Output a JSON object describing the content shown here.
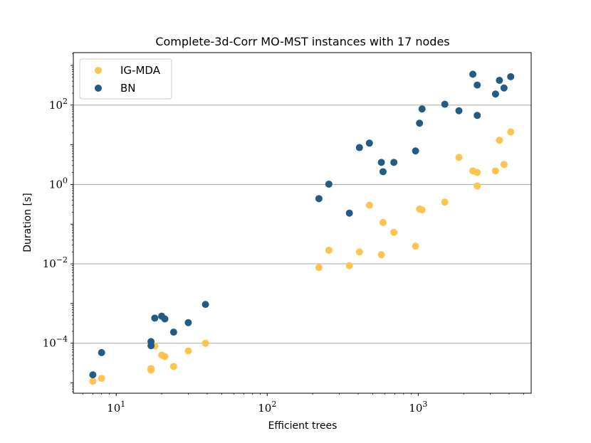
{
  "chart_data": {
    "type": "scatter",
    "title": "Complete-3d-Corr MO-MST instances with 17 nodes",
    "xlabel": "Efficient trees",
    "ylabel": "Duration [s]",
    "xscale": "log",
    "yscale": "log",
    "xlim": [
      5.2,
      5600
    ],
    "ylim": [
      5.5e-06,
      2100
    ],
    "grid": "y-major",
    "legend_position": "top-left",
    "x_ticks": [
      {
        "value": 10,
        "base": "10",
        "exp": "1"
      },
      {
        "value": 100,
        "base": "10",
        "exp": "2"
      },
      {
        "value": 1000,
        "base": "10",
        "exp": "3"
      }
    ],
    "y_ticks": [
      {
        "value": 0.0001,
        "base": "10",
        "exp": "−4"
      },
      {
        "value": 0.01,
        "base": "10",
        "exp": "−2"
      },
      {
        "value": 1,
        "base": "10",
        "exp": "0"
      },
      {
        "value": 100,
        "base": "10",
        "exp": "2"
      }
    ],
    "series": [
      {
        "name": "IG-MDA",
        "color": "#fec44f",
        "points": [
          [
            7,
            1.1e-05
          ],
          [
            8,
            1.3e-05
          ],
          [
            17,
            2.3e-05
          ],
          [
            17,
            2.1e-05
          ],
          [
            18,
            8.5e-05
          ],
          [
            20,
            5e-05
          ],
          [
            21,
            4.6e-05
          ],
          [
            24,
            2.6e-05
          ],
          [
            30,
            6.4e-05
          ],
          [
            39,
            0.0001
          ],
          [
            220,
            0.0081
          ],
          [
            256,
            0.022
          ],
          [
            350,
            0.009
          ],
          [
            408,
            0.02
          ],
          [
            475,
            0.3
          ],
          [
            570,
            0.017
          ],
          [
            585,
            0.11
          ],
          [
            690,
            0.062
          ],
          [
            960,
            0.028
          ],
          [
            1020,
            0.24
          ],
          [
            1060,
            0.23
          ],
          [
            1500,
            0.36
          ],
          [
            1860,
            4.8
          ],
          [
            2300,
            2.2
          ],
          [
            2460,
            2.0
          ],
          [
            2460,
            0.92
          ],
          [
            3250,
            2.2
          ],
          [
            3450,
            13
          ],
          [
            3700,
            3.2
          ],
          [
            4100,
            21
          ]
        ]
      },
      {
        "name": "BN",
        "color": "#225b83",
        "points": [
          [
            7,
            1.6e-05
          ],
          [
            8,
            5.8e-05
          ],
          [
            17,
            0.00011
          ],
          [
            17,
            8.7e-05
          ],
          [
            18,
            0.00043
          ],
          [
            20,
            0.00048
          ],
          [
            21,
            0.00041
          ],
          [
            24,
            0.00019
          ],
          [
            30,
            0.00033
          ],
          [
            39,
            0.00095
          ],
          [
            220,
            0.44
          ],
          [
            256,
            1.02
          ],
          [
            350,
            0.19
          ],
          [
            408,
            8.5
          ],
          [
            475,
            11
          ],
          [
            570,
            3.6
          ],
          [
            585,
            2.1
          ],
          [
            690,
            3.6
          ],
          [
            960,
            7.0
          ],
          [
            1020,
            35
          ],
          [
            1060,
            80
          ],
          [
            1500,
            105
          ],
          [
            1860,
            72
          ],
          [
            2300,
            600
          ],
          [
            2460,
            320
          ],
          [
            2460,
            55
          ],
          [
            3250,
            190
          ],
          [
            3450,
            420
          ],
          [
            3700,
            270
          ],
          [
            4100,
            520
          ]
        ]
      }
    ]
  }
}
